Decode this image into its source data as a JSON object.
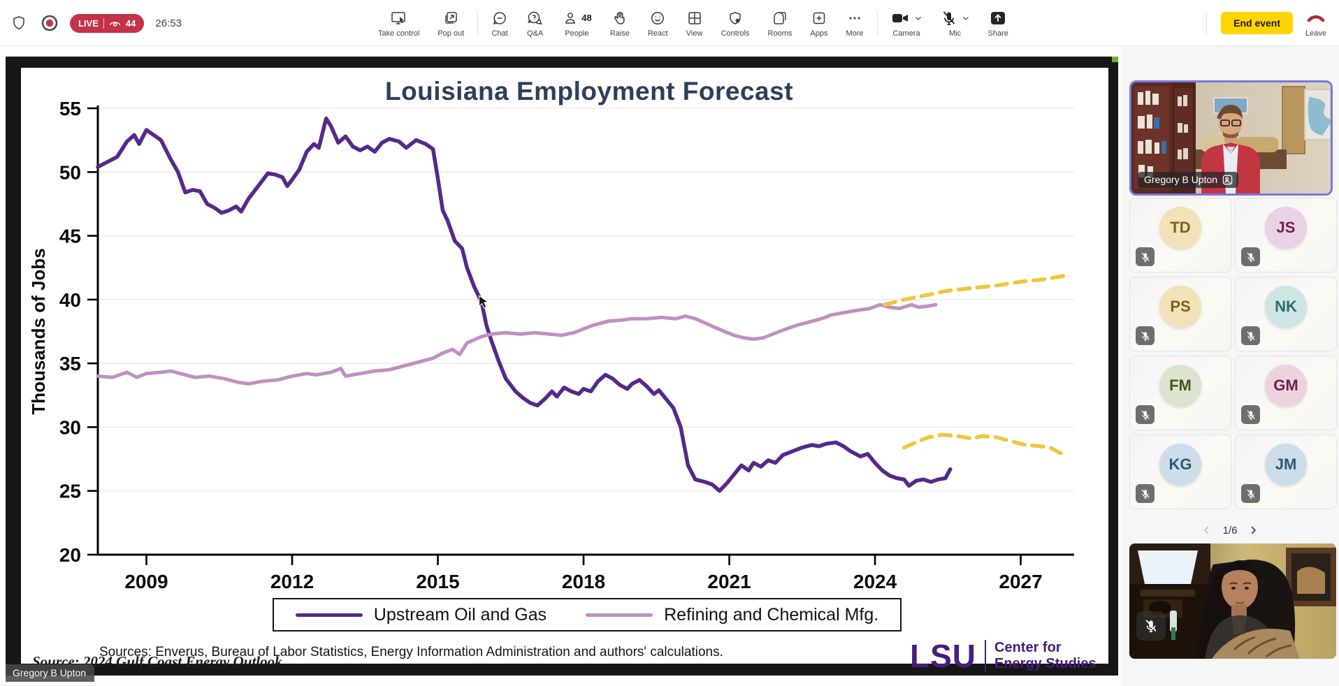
{
  "meeting": {
    "live_badge": "LIVE",
    "viewer_count": "44",
    "timer": "26:53",
    "toolbar": [
      {
        "label": "Take control"
      },
      {
        "label": "Pop out"
      },
      {
        "label": "Chat"
      },
      {
        "label": "Q&A"
      },
      {
        "label": "People",
        "badge": "48"
      },
      {
        "label": "Raise"
      },
      {
        "label": "React"
      },
      {
        "label": "View"
      },
      {
        "label": "Controls"
      },
      {
        "label": "Rooms"
      },
      {
        "label": "Apps"
      },
      {
        "label": "More"
      },
      {
        "label": "Camera"
      },
      {
        "label": "Mic"
      },
      {
        "label": "Share"
      }
    ],
    "end_event_label": "End event",
    "leave_label": "Leave"
  },
  "slide": {
    "title": "Louisiana Employment Forecast",
    "sources_line": "Sources: Enverus, Bureau of Labor Statistics, Energy Information Administration and authors' calculations.",
    "watermark": "Source: 2024 Gulf Coast Energy Outlook",
    "logo": {
      "lsu": "LSU",
      "org_line1": "Center for",
      "org_line2": "Energy Studies",
      "color": "#461d7c"
    }
  },
  "speaker_name": "Gregory B Upton",
  "sidebar": {
    "pagination": "1/6",
    "participants": [
      {
        "initials": "TD",
        "bg": "#f2e2b8",
        "fg": "#7c6218"
      },
      {
        "initials": "JS",
        "bg": "#e9d2e3",
        "fg": "#702150"
      },
      {
        "initials": "PS",
        "bg": "#f2e2b8",
        "fg": "#7c6218"
      },
      {
        "initials": "NK",
        "bg": "#cde6e5",
        "fg": "#2e6a6a"
      },
      {
        "initials": "FM",
        "bg": "#dce4cf",
        "fg": "#42561f"
      },
      {
        "initials": "GM",
        "bg": "#eed2e0",
        "fg": "#6d1f4e"
      },
      {
        "initials": "KG",
        "bg": "#cdddea",
        "fg": "#2c5a72"
      },
      {
        "initials": "JM",
        "bg": "#cdddea",
        "fg": "#2c5a72"
      }
    ]
  },
  "chart_data": {
    "type": "line",
    "title": "Louisiana Employment Forecast",
    "xlabel": "",
    "ylabel": "Thousands of Jobs",
    "xlim": [
      2008.0,
      2028.1
    ],
    "ylim": [
      20,
      55
    ],
    "xticks": [
      2009,
      2012,
      2015,
      2018,
      2021,
      2024,
      2027
    ],
    "yticks": [
      20,
      25,
      30,
      35,
      40,
      45,
      50,
      55
    ],
    "grid": "horizontal",
    "legend_position": "bottom",
    "cursor": [
      2015.85,
      40.3
    ],
    "legend": [
      {
        "label": "Upstream Oil and Gas",
        "color": "#55298c"
      },
      {
        "label": "Refining and Chemical Mfg.",
        "color": "#c08fc2"
      }
    ],
    "series": [
      {
        "name": "Upstream Oil and Gas",
        "color": "#55298c",
        "style": "solid",
        "width": 5.5,
        "points": [
          [
            2008.0,
            50.4
          ],
          [
            2008.2,
            50.8
          ],
          [
            2008.4,
            51.2
          ],
          [
            2008.6,
            52.4
          ],
          [
            2008.75,
            52.9
          ],
          [
            2008.85,
            52.2
          ],
          [
            2009.0,
            53.3
          ],
          [
            2009.15,
            52.9
          ],
          [
            2009.3,
            52.5
          ],
          [
            2009.5,
            51.0
          ],
          [
            2009.65,
            50.0
          ],
          [
            2009.8,
            48.4
          ],
          [
            2009.95,
            48.6
          ],
          [
            2010.1,
            48.5
          ],
          [
            2010.25,
            47.5
          ],
          [
            2010.4,
            47.2
          ],
          [
            2010.55,
            46.8
          ],
          [
            2010.7,
            47.0
          ],
          [
            2010.85,
            47.3
          ],
          [
            2010.95,
            46.9
          ],
          [
            2011.1,
            47.9
          ],
          [
            2011.3,
            48.9
          ],
          [
            2011.5,
            49.9
          ],
          [
            2011.65,
            49.8
          ],
          [
            2011.8,
            49.6
          ],
          [
            2011.9,
            48.9
          ],
          [
            2012.0,
            49.4
          ],
          [
            2012.15,
            50.2
          ],
          [
            2012.3,
            51.6
          ],
          [
            2012.45,
            52.2
          ],
          [
            2012.55,
            51.9
          ],
          [
            2012.7,
            54.2
          ],
          [
            2012.8,
            53.6
          ],
          [
            2012.95,
            52.3
          ],
          [
            2013.1,
            52.8
          ],
          [
            2013.25,
            52.0
          ],
          [
            2013.4,
            51.7
          ],
          [
            2013.55,
            52.0
          ],
          [
            2013.7,
            51.6
          ],
          [
            2013.85,
            52.3
          ],
          [
            2014.0,
            52.6
          ],
          [
            2014.2,
            52.4
          ],
          [
            2014.35,
            51.9
          ],
          [
            2014.55,
            52.5
          ],
          [
            2014.75,
            52.2
          ],
          [
            2014.9,
            51.8
          ],
          [
            2015.0,
            49.5
          ],
          [
            2015.1,
            47.0
          ],
          [
            2015.2,
            46.2
          ],
          [
            2015.35,
            44.6
          ],
          [
            2015.5,
            44.0
          ],
          [
            2015.6,
            42.5
          ],
          [
            2015.75,
            41.0
          ],
          [
            2015.9,
            39.8
          ],
          [
            2016.0,
            38.0
          ],
          [
            2016.1,
            36.8
          ],
          [
            2016.25,
            35.2
          ],
          [
            2016.4,
            33.8
          ],
          [
            2016.5,
            33.3
          ],
          [
            2016.6,
            32.8
          ],
          [
            2016.75,
            32.3
          ],
          [
            2016.9,
            31.9
          ],
          [
            2017.05,
            31.7
          ],
          [
            2017.2,
            32.2
          ],
          [
            2017.35,
            32.8
          ],
          [
            2017.45,
            32.4
          ],
          [
            2017.6,
            33.1
          ],
          [
            2017.75,
            32.8
          ],
          [
            2017.9,
            32.6
          ],
          [
            2018.0,
            33.0
          ],
          [
            2018.15,
            32.8
          ],
          [
            2018.3,
            33.6
          ],
          [
            2018.45,
            34.1
          ],
          [
            2018.6,
            33.8
          ],
          [
            2018.75,
            33.3
          ],
          [
            2018.9,
            33.0
          ],
          [
            2019.0,
            33.4
          ],
          [
            2019.15,
            33.7
          ],
          [
            2019.3,
            33.2
          ],
          [
            2019.45,
            32.6
          ],
          [
            2019.55,
            32.9
          ],
          [
            2019.7,
            32.2
          ],
          [
            2019.85,
            31.5
          ],
          [
            2020.0,
            30.0
          ],
          [
            2020.15,
            27.0
          ],
          [
            2020.3,
            25.9
          ],
          [
            2020.5,
            25.7
          ],
          [
            2020.65,
            25.5
          ],
          [
            2020.8,
            25.0
          ],
          [
            2020.95,
            25.6
          ],
          [
            2021.1,
            26.3
          ],
          [
            2021.25,
            27.0
          ],
          [
            2021.4,
            26.6
          ],
          [
            2021.5,
            27.2
          ],
          [
            2021.65,
            26.9
          ],
          [
            2021.8,
            27.4
          ],
          [
            2021.95,
            27.2
          ],
          [
            2022.1,
            27.8
          ],
          [
            2022.3,
            28.1
          ],
          [
            2022.5,
            28.4
          ],
          [
            2022.7,
            28.6
          ],
          [
            2022.85,
            28.5
          ],
          [
            2023.0,
            28.7
          ],
          [
            2023.2,
            28.8
          ],
          [
            2023.35,
            28.5
          ],
          [
            2023.5,
            28.1
          ],
          [
            2023.7,
            27.7
          ],
          [
            2023.85,
            27.9
          ],
          [
            2024.0,
            27.2
          ],
          [
            2024.15,
            26.6
          ],
          [
            2024.3,
            26.2
          ],
          [
            2024.45,
            26.0
          ],
          [
            2024.6,
            25.9
          ],
          [
            2024.7,
            25.4
          ],
          [
            2024.85,
            25.8
          ],
          [
            2025.0,
            25.9
          ],
          [
            2025.15,
            25.7
          ],
          [
            2025.3,
            25.9
          ],
          [
            2025.45,
            26.0
          ],
          [
            2025.55,
            26.7
          ]
        ]
      },
      {
        "name": "Refining and Chemical Mfg.",
        "color": "#c08fc2",
        "style": "solid",
        "width": 5,
        "points": [
          [
            2008.0,
            34.0
          ],
          [
            2008.3,
            33.9
          ],
          [
            2008.6,
            34.3
          ],
          [
            2008.8,
            33.9
          ],
          [
            2009.0,
            34.2
          ],
          [
            2009.3,
            34.3
          ],
          [
            2009.5,
            34.4
          ],
          [
            2009.8,
            34.1
          ],
          [
            2010.0,
            33.9
          ],
          [
            2010.3,
            34.0
          ],
          [
            2010.6,
            33.8
          ],
          [
            2010.9,
            33.5
          ],
          [
            2011.1,
            33.4
          ],
          [
            2011.4,
            33.6
          ],
          [
            2011.7,
            33.7
          ],
          [
            2012.0,
            34.0
          ],
          [
            2012.3,
            34.2
          ],
          [
            2012.5,
            34.1
          ],
          [
            2012.8,
            34.3
          ],
          [
            2013.0,
            34.6
          ],
          [
            2013.1,
            34.0
          ],
          [
            2013.4,
            34.2
          ],
          [
            2013.7,
            34.4
          ],
          [
            2014.0,
            34.5
          ],
          [
            2014.3,
            34.8
          ],
          [
            2014.6,
            35.1
          ],
          [
            2014.9,
            35.4
          ],
          [
            2015.1,
            35.8
          ],
          [
            2015.3,
            36.1
          ],
          [
            2015.45,
            35.7
          ],
          [
            2015.6,
            36.6
          ],
          [
            2015.9,
            37.1
          ],
          [
            2016.1,
            37.3
          ],
          [
            2016.4,
            37.4
          ],
          [
            2016.7,
            37.3
          ],
          [
            2017.0,
            37.4
          ],
          [
            2017.3,
            37.3
          ],
          [
            2017.55,
            37.2
          ],
          [
            2017.8,
            37.4
          ],
          [
            2018.0,
            37.7
          ],
          [
            2018.2,
            38.0
          ],
          [
            2018.5,
            38.3
          ],
          [
            2018.8,
            38.4
          ],
          [
            2019.0,
            38.5
          ],
          [
            2019.3,
            38.5
          ],
          [
            2019.6,
            38.6
          ],
          [
            2019.9,
            38.5
          ],
          [
            2020.1,
            38.7
          ],
          [
            2020.3,
            38.5
          ],
          [
            2020.6,
            38.0
          ],
          [
            2020.9,
            37.5
          ],
          [
            2021.1,
            37.2
          ],
          [
            2021.3,
            37.0
          ],
          [
            2021.5,
            36.9
          ],
          [
            2021.7,
            37.0
          ],
          [
            2021.9,
            37.3
          ],
          [
            2022.1,
            37.6
          ],
          [
            2022.4,
            38.0
          ],
          [
            2022.7,
            38.3
          ],
          [
            2022.9,
            38.5
          ],
          [
            2023.1,
            38.8
          ],
          [
            2023.4,
            39.0
          ],
          [
            2023.7,
            39.2
          ],
          [
            2023.9,
            39.3
          ],
          [
            2024.1,
            39.6
          ],
          [
            2024.3,
            39.4
          ],
          [
            2024.5,
            39.3
          ],
          [
            2024.75,
            39.6
          ],
          [
            2024.9,
            39.4
          ],
          [
            2025.1,
            39.5
          ],
          [
            2025.25,
            39.6
          ]
        ]
      },
      {
        "name": "Refining and Chemical Mfg. forecast",
        "color": "#eec63d",
        "style": "dashed",
        "width": 5.5,
        "points": [
          [
            2024.2,
            39.6
          ],
          [
            2024.6,
            40.0
          ],
          [
            2025.0,
            40.3
          ],
          [
            2025.5,
            40.7
          ],
          [
            2026.0,
            40.9
          ],
          [
            2026.5,
            41.1
          ],
          [
            2027.0,
            41.4
          ],
          [
            2027.5,
            41.6
          ],
          [
            2027.95,
            41.9
          ]
        ]
      },
      {
        "name": "Upstream Oil and Gas forecast",
        "color": "#eec63d",
        "style": "dashed",
        "width": 5.5,
        "points": [
          [
            2024.6,
            28.4
          ],
          [
            2024.9,
            28.9
          ],
          [
            2025.1,
            29.2
          ],
          [
            2025.4,
            29.4
          ],
          [
            2025.7,
            29.3
          ],
          [
            2026.0,
            29.1
          ],
          [
            2026.2,
            29.3
          ],
          [
            2026.5,
            29.2
          ],
          [
            2026.8,
            28.9
          ],
          [
            2027.1,
            28.6
          ],
          [
            2027.4,
            28.5
          ],
          [
            2027.6,
            28.4
          ],
          [
            2027.95,
            27.7
          ]
        ]
      }
    ]
  }
}
